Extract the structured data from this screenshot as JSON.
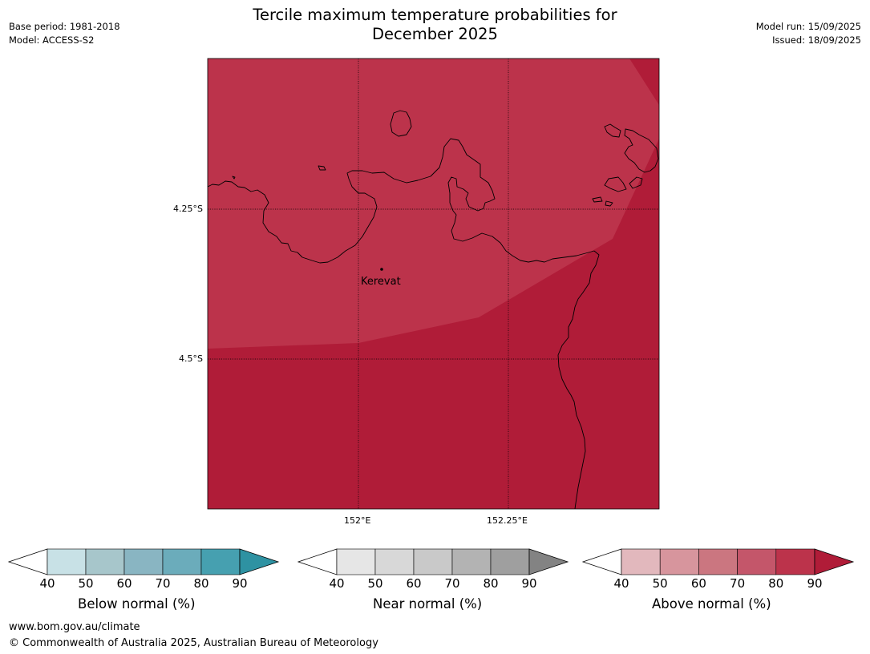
{
  "title_line1": "Tercile maximum temperature probabilities for",
  "title_line2": "December 2025",
  "meta_left": {
    "base_period": "Base period: 1981-2018",
    "model": "Model: ACCESS-S2"
  },
  "meta_right": {
    "model_run": "Model run: 15/09/2025",
    "issued": "Issued: 18/09/2025"
  },
  "map": {
    "lat_labels": [
      "4.25°S",
      "4.5°S"
    ],
    "lon_labels": [
      "152°E",
      "152.25°E"
    ],
    "place_label": "Kerevat",
    "region_colors": {
      "above_80_90": "#b01c38",
      "above_70_80": "#bc334b"
    }
  },
  "colorbars": [
    {
      "label": "Below normal (%)",
      "ticks": [
        "40",
        "50",
        "60",
        "70",
        "80",
        "90"
      ],
      "colors": [
        "#c8e1e6",
        "#a7c6cb",
        "#89b5c2",
        "#6bacbb",
        "#46a0b0",
        "#2e92a2"
      ]
    },
    {
      "label": "Near normal (%)",
      "ticks": [
        "40",
        "50",
        "60",
        "70",
        "80",
        "90"
      ],
      "colors": [
        "#e6e6e6",
        "#d8d8d8",
        "#c9c9c9",
        "#b3b3b3",
        "#9f9f9f",
        "#838383"
      ]
    },
    {
      "label": "Above normal (%)",
      "ticks": [
        "40",
        "50",
        "60",
        "70",
        "80",
        "90"
      ],
      "colors": [
        "#e2b8bd",
        "#d7959d",
        "#cb7680",
        "#c4566a",
        "#bc334b",
        "#b01c38"
      ]
    }
  ],
  "footer": {
    "url": "www.bom.gov.au/climate",
    "copyright": "© Commonwealth of Australia 2025, Australian Bureau of Meteorology"
  }
}
